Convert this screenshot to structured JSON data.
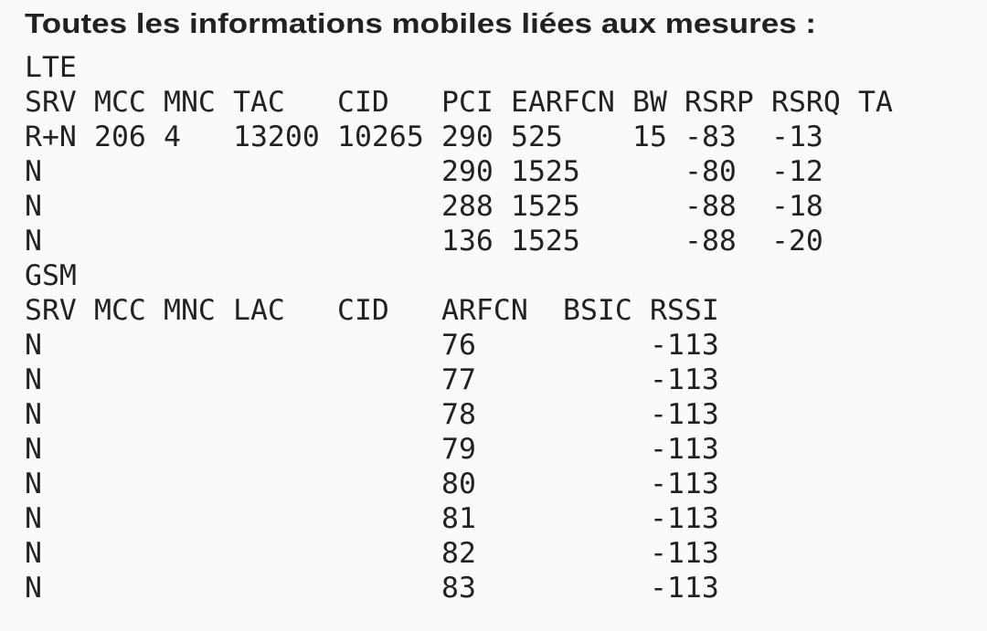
{
  "title": "Toutes les informations mobiles liées aux mesures :",
  "lte": {
    "label": "LTE",
    "headers": [
      "SRV",
      "MCC",
      "MNC",
      "TAC",
      "CID",
      "PCI",
      "EARFCN",
      "BW",
      "RSRP",
      "RSRQ",
      "TA"
    ],
    "rows": [
      {
        "SRV": "R+N",
        "MCC": "206",
        "MNC": "4",
        "TAC": "13200",
        "CID": "10265",
        "PCI": "290",
        "EARFCN": "525",
        "BW": "15",
        "RSRP": "-83",
        "RSRQ": "-13"
      },
      {
        "SRV": "N",
        "PCI": "290",
        "EARFCN": "1525",
        "RSRP": "-80",
        "RSRQ": "-12"
      },
      {
        "SRV": "N",
        "PCI": "288",
        "EARFCN": "1525",
        "RSRP": "-88",
        "RSRQ": "-18"
      },
      {
        "SRV": "N",
        "PCI": "136",
        "EARFCN": "1525",
        "RSRP": "-88",
        "RSRQ": "-20"
      }
    ]
  },
  "gsm": {
    "label": "GSM",
    "headers": [
      "SRV",
      "MCC",
      "MNC",
      "LAC",
      "CID",
      "ARFCN",
      "BSIC",
      "RSSI"
    ],
    "rows": [
      {
        "SRV": "N",
        "ARFCN": "76",
        "RSSI": "-113"
      },
      {
        "SRV": "N",
        "ARFCN": "77",
        "RSSI": "-113"
      },
      {
        "SRV": "N",
        "ARFCN": "78",
        "RSSI": "-113"
      },
      {
        "SRV": "N",
        "ARFCN": "79",
        "RSSI": "-113"
      },
      {
        "SRV": "N",
        "ARFCN": "80",
        "RSSI": "-113"
      },
      {
        "SRV": "N",
        "ARFCN": "81",
        "RSSI": "-113"
      },
      {
        "SRV": "N",
        "ARFCN": "82",
        "RSSI": "-113"
      },
      {
        "SRV": "N",
        "ARFCN": "83",
        "RSSI": "-113"
      }
    ]
  }
}
